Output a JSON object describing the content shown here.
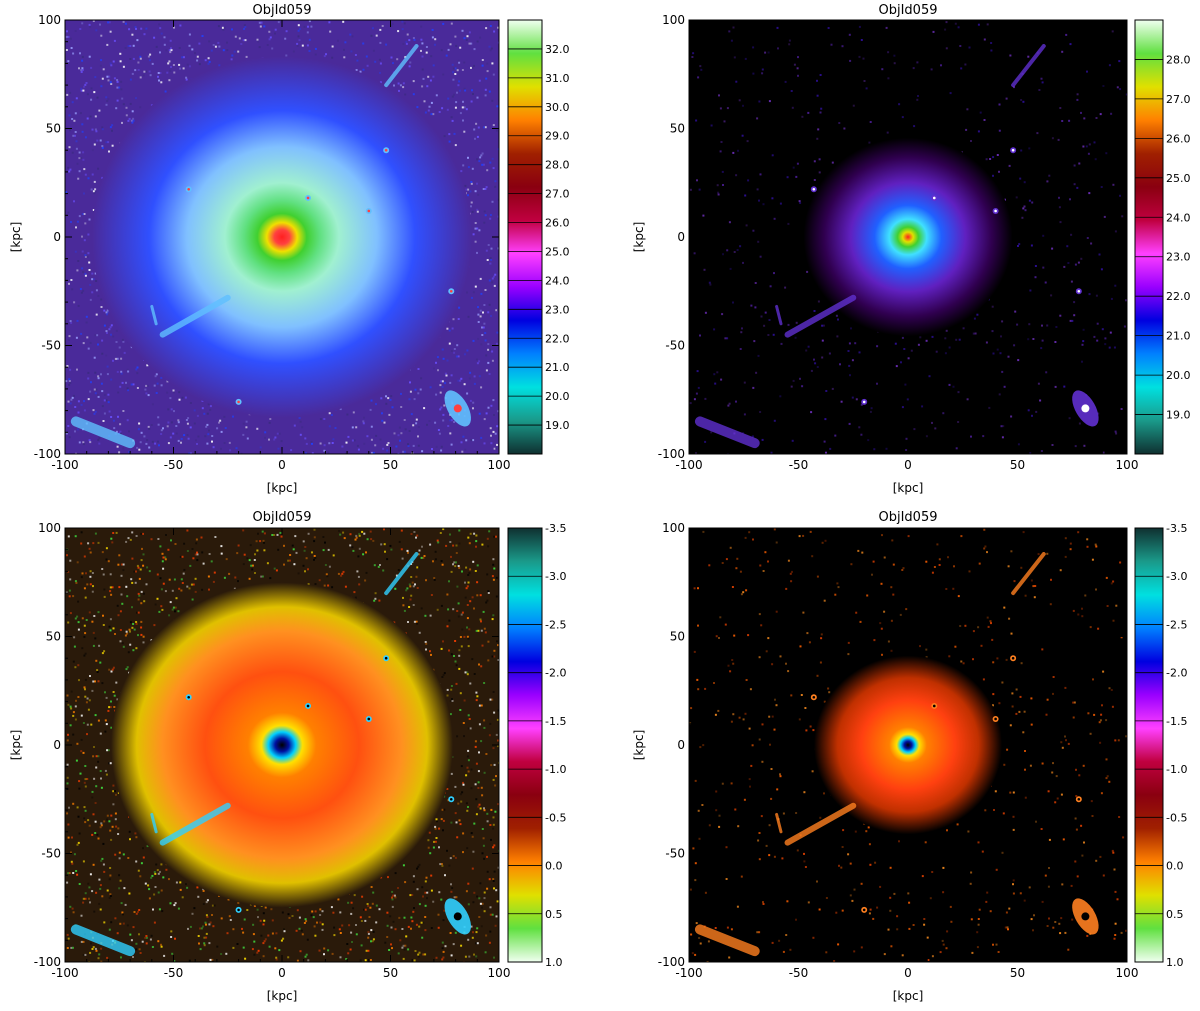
{
  "figure": {
    "colors": {
      "background": "#ffffff",
      "axis": "#000000",
      "deep_sky": "#000000"
    }
  },
  "chart_data": [
    {
      "type": "heatmap",
      "title": "ObjId059",
      "xlabel": "[kpc]",
      "ylabel": "[kpc]",
      "xlim": [
        -100,
        100
      ],
      "ylim": [
        -100,
        100
      ],
      "xticks": [
        "-100",
        "-50",
        "0",
        "50",
        "100"
      ],
      "yticks": [
        "-100",
        "-50",
        "0",
        "50",
        "100"
      ],
      "colorbar": {
        "range": [
          18.0,
          33.0
        ],
        "ticks": [
          "19.0",
          "20.0",
          "21.0",
          "22.0",
          "23.0",
          "24.0",
          "25.0",
          "26.0",
          "27.0",
          "28.0",
          "29.0",
          "30.0",
          "31.0",
          "32.0"
        ],
        "tick_values": [
          19,
          20,
          21,
          22,
          23,
          24,
          25,
          26,
          27,
          28,
          29,
          30,
          31,
          32
        ],
        "colors": [
          "#0f3030",
          "#1a9a8a",
          "#00e0e0",
          "#0080ff",
          "#0000e0",
          "#9a00ff",
          "#ff40ff",
          "#c00040",
          "#8a0010",
          "#a02000",
          "#ff8000",
          "#e0e000",
          "#60e040",
          "#f0fff0"
        ]
      },
      "background_color": "#4a2a9a"
    },
    {
      "type": "heatmap",
      "title": "ObjId059",
      "xlabel": "[kpc]",
      "ylabel": "[kpc]",
      "xlim": [
        -100,
        100
      ],
      "ylim": [
        -100,
        100
      ],
      "xticks": [
        "-100",
        "-50",
        "0",
        "50",
        "100"
      ],
      "yticks": [
        "-100",
        "-50",
        "0",
        "50",
        "100"
      ],
      "colorbar": {
        "range": [
          18.0,
          29.0
        ],
        "ticks": [
          "19.0",
          "20.0",
          "21.0",
          "22.0",
          "23.0",
          "24.0",
          "25.0",
          "26.0",
          "27.0",
          "28.0"
        ],
        "tick_values": [
          19,
          20,
          21,
          22,
          23,
          24,
          25,
          26,
          27,
          28
        ],
        "colors": [
          "#0f3030",
          "#1a9a8a",
          "#00e0e0",
          "#0080ff",
          "#0000e0",
          "#9a00ff",
          "#ff40ff",
          "#c00040",
          "#8a0010",
          "#a02000",
          "#ff8000",
          "#e0e000",
          "#60e040",
          "#f0fff0"
        ]
      },
      "background_color": "#000000"
    },
    {
      "type": "heatmap",
      "title": "ObjId059",
      "xlabel": "[kpc]",
      "ylabel": "[kpc]",
      "xlim": [
        -100,
        100
      ],
      "ylim": [
        -100,
        100
      ],
      "xticks": [
        "-100",
        "-50",
        "0",
        "50",
        "100"
      ],
      "yticks": [
        "-100",
        "-50",
        "0",
        "50",
        "100"
      ],
      "colorbar": {
        "range": [
          -3.5,
          1.0
        ],
        "ticks": [
          "1.0",
          "0.5",
          "0.0",
          "-0.5",
          "-1.0",
          "-1.5",
          "-2.0",
          "-2.5",
          "-3.0",
          "-3.5"
        ],
        "tick_values": [
          1.0,
          0.5,
          0.0,
          -0.5,
          -1.0,
          -1.5,
          -2.0,
          -2.5,
          -3.0,
          -3.5
        ],
        "colors": [
          "#f0fff0",
          "#60e040",
          "#e0e000",
          "#ff8000",
          "#a02000",
          "#8a0010",
          "#c00040",
          "#ff40ff",
          "#9a00ff",
          "#0000e0",
          "#0080ff",
          "#00e0e0",
          "#1a9a8a",
          "#0f3030"
        ]
      },
      "background_color": "#2a1a0a"
    },
    {
      "type": "heatmap",
      "title": "ObjId059",
      "xlabel": "[kpc]",
      "ylabel": "[kpc]",
      "xlim": [
        -100,
        100
      ],
      "ylim": [
        -100,
        100
      ],
      "xticks": [
        "-100",
        "-50",
        "0",
        "50",
        "100"
      ],
      "yticks": [
        "-100",
        "-50",
        "0",
        "50",
        "100"
      ],
      "colorbar": {
        "range": [
          -3.5,
          1.0
        ],
        "ticks": [
          "1.0",
          "0.5",
          "0.0",
          "-0.5",
          "-1.0",
          "-1.5",
          "-2.0",
          "-2.5",
          "-3.0",
          "-3.5"
        ],
        "tick_values": [
          1.0,
          0.5,
          0.0,
          -0.5,
          -1.0,
          -1.5,
          -2.0,
          -2.5,
          -3.0,
          -3.5
        ],
        "colors": [
          "#f0fff0",
          "#60e040",
          "#e0e000",
          "#ff8000",
          "#a02000",
          "#8a0010",
          "#c00040",
          "#ff40ff",
          "#9a00ff",
          "#0000e0",
          "#0080ff",
          "#00e0e0",
          "#1a9a8a",
          "#0f3030"
        ]
      },
      "background_color": "#000000"
    }
  ]
}
